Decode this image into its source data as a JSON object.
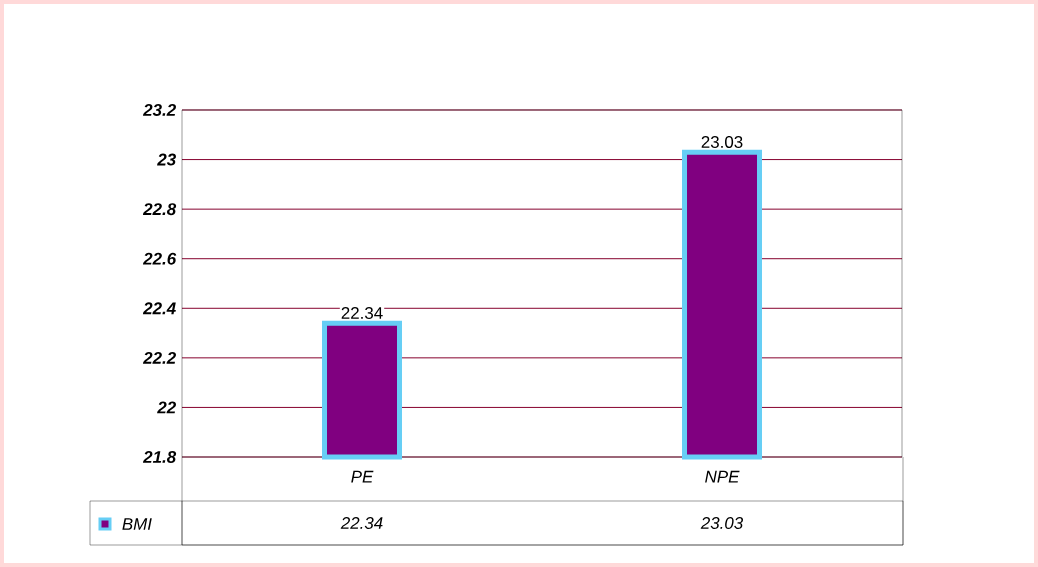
{
  "chart_data": {
    "type": "bar",
    "categories": [
      "PE",
      "NPE"
    ],
    "series": [
      {
        "name": "BMI",
        "color": "#800080",
        "values": [
          22.34,
          23.03
        ],
        "value_labels": [
          "22.34",
          "23.03"
        ]
      }
    ],
    "ylim": [
      21.8,
      23.2
    ],
    "yticks": [
      21.8,
      22,
      22.2,
      22.4,
      22.6,
      22.8,
      23,
      23.2
    ],
    "grid": "y",
    "legend": "bottom left"
  }
}
